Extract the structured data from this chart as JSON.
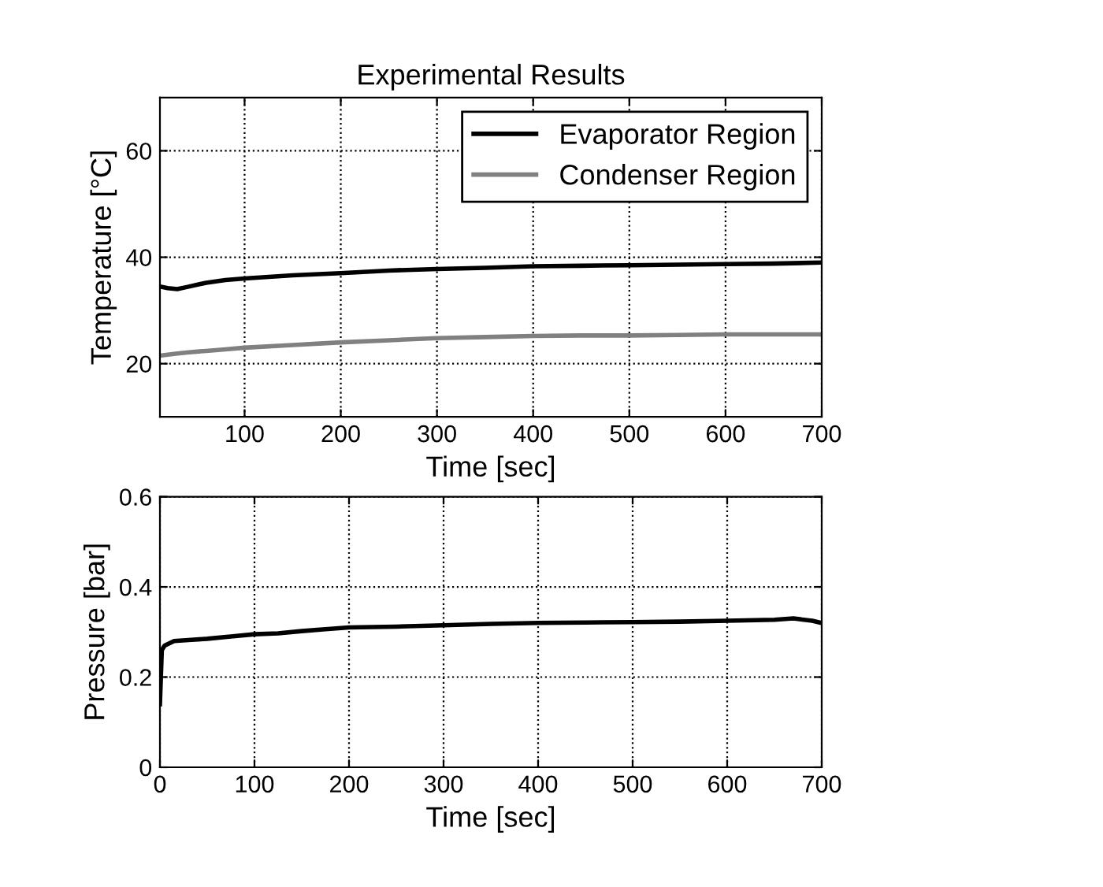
{
  "chart_data": [
    {
      "type": "line",
      "title": "Experimental Results",
      "xlabel": "Time [sec]",
      "ylabel": "Temperature [°C]",
      "xlim": [
        12,
        700
      ],
      "xticks": [
        100,
        200,
        300,
        400,
        500,
        600,
        700
      ],
      "ylim": [
        10,
        70
      ],
      "yticks": [
        20,
        40,
        60
      ],
      "grid": true,
      "legend": "top right",
      "x": [
        12,
        20,
        30,
        40,
        60,
        80,
        100,
        150,
        200,
        250,
        300,
        350,
        400,
        450,
        500,
        550,
        600,
        650,
        700
      ],
      "series": [
        {
          "name": "Evaporator Region",
          "color": "#000000",
          "values": [
            34.5,
            34.2,
            34.0,
            34.4,
            35.2,
            35.7,
            36.0,
            36.6,
            37.0,
            37.5,
            37.8,
            38.0,
            38.3,
            38.4,
            38.5,
            38.6,
            38.7,
            38.8,
            39.0
          ]
        },
        {
          "name": "Condenser Region",
          "color": "#808080",
          "values": [
            21.5,
            21.7,
            21.9,
            22.1,
            22.4,
            22.7,
            23.0,
            23.5,
            24.0,
            24.4,
            24.8,
            25.0,
            25.2,
            25.3,
            25.3,
            25.4,
            25.5,
            25.5,
            25.5
          ]
        }
      ]
    },
    {
      "type": "line",
      "xlabel": "Time [sec]",
      "ylabel": "Pressure [bar]",
      "xlim": [
        0,
        700
      ],
      "xticks": [
        0,
        100,
        200,
        300,
        400,
        500,
        600,
        700
      ],
      "ylim": [
        0,
        0.6
      ],
      "yticks": [
        0,
        0.2,
        0.4,
        0.6
      ],
      "grid": true,
      "x": [
        0,
        1,
        2,
        5,
        15,
        30,
        50,
        75,
        100,
        125,
        150,
        175,
        200,
        250,
        300,
        350,
        400,
        450,
        500,
        550,
        600,
        650,
        670,
        690,
        700
      ],
      "series": [
        {
          "color": "#000000",
          "values": [
            0.14,
            0.2,
            0.26,
            0.27,
            0.28,
            0.282,
            0.285,
            0.29,
            0.295,
            0.297,
            0.302,
            0.306,
            0.31,
            0.312,
            0.315,
            0.318,
            0.32,
            0.321,
            0.322,
            0.323,
            0.325,
            0.327,
            0.33,
            0.325,
            0.32
          ]
        }
      ]
    }
  ]
}
